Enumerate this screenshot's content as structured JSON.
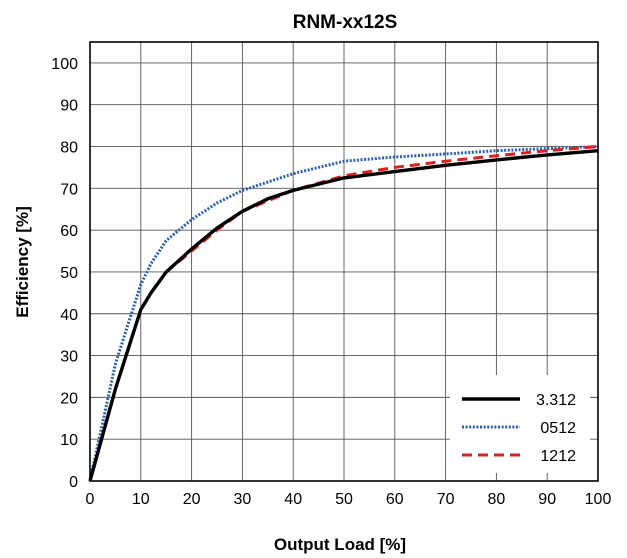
{
  "chart_data": {
    "type": "line",
    "title": "RNM-xx12S",
    "xlabel": "Output Load [%]",
    "ylabel": "Efficiency [%]",
    "xlim": [
      0,
      100
    ],
    "ylim": [
      0,
      105
    ],
    "x_ticks": [
      0,
      10,
      20,
      30,
      40,
      50,
      60,
      70,
      80,
      90,
      100
    ],
    "y_ticks": [
      0,
      10,
      20,
      30,
      40,
      50,
      60,
      70,
      80,
      90,
      100
    ],
    "grid": true,
    "legend_position": "bottom-right",
    "series": [
      {
        "name": "3.312",
        "color": "#000000",
        "style": "solid",
        "x": [
          0,
          5,
          10,
          12,
          15,
          20,
          25,
          30,
          35,
          40,
          50,
          60,
          70,
          80,
          90,
          100
        ],
        "y": [
          0,
          22,
          41,
          45,
          50,
          55.5,
          60.5,
          64.5,
          67.5,
          69.5,
          72.5,
          74,
          75.5,
          76.8,
          78,
          79
        ]
      },
      {
        "name": "0512",
        "color": "#2a5fb0",
        "style": "dotted",
        "x": [
          0,
          5,
          10,
          12,
          15,
          20,
          25,
          30,
          40,
          50,
          60,
          70,
          80,
          90,
          100
        ],
        "y": [
          0,
          28,
          47,
          52,
          57.5,
          62.5,
          66.5,
          69.5,
          73.5,
          76.5,
          77.5,
          78.2,
          79,
          79.5,
          80
        ]
      },
      {
        "name": "1212",
        "color": "#e02020",
        "style": "dashed",
        "x": [
          0,
          5,
          10,
          12,
          15,
          20,
          25,
          30,
          40,
          50,
          60,
          70,
          80,
          90,
          100
        ],
        "y": [
          0,
          22,
          41,
          45,
          50,
          55,
          60,
          64.5,
          69.5,
          73,
          75,
          76.5,
          77.8,
          79,
          80
        ]
      }
    ]
  }
}
